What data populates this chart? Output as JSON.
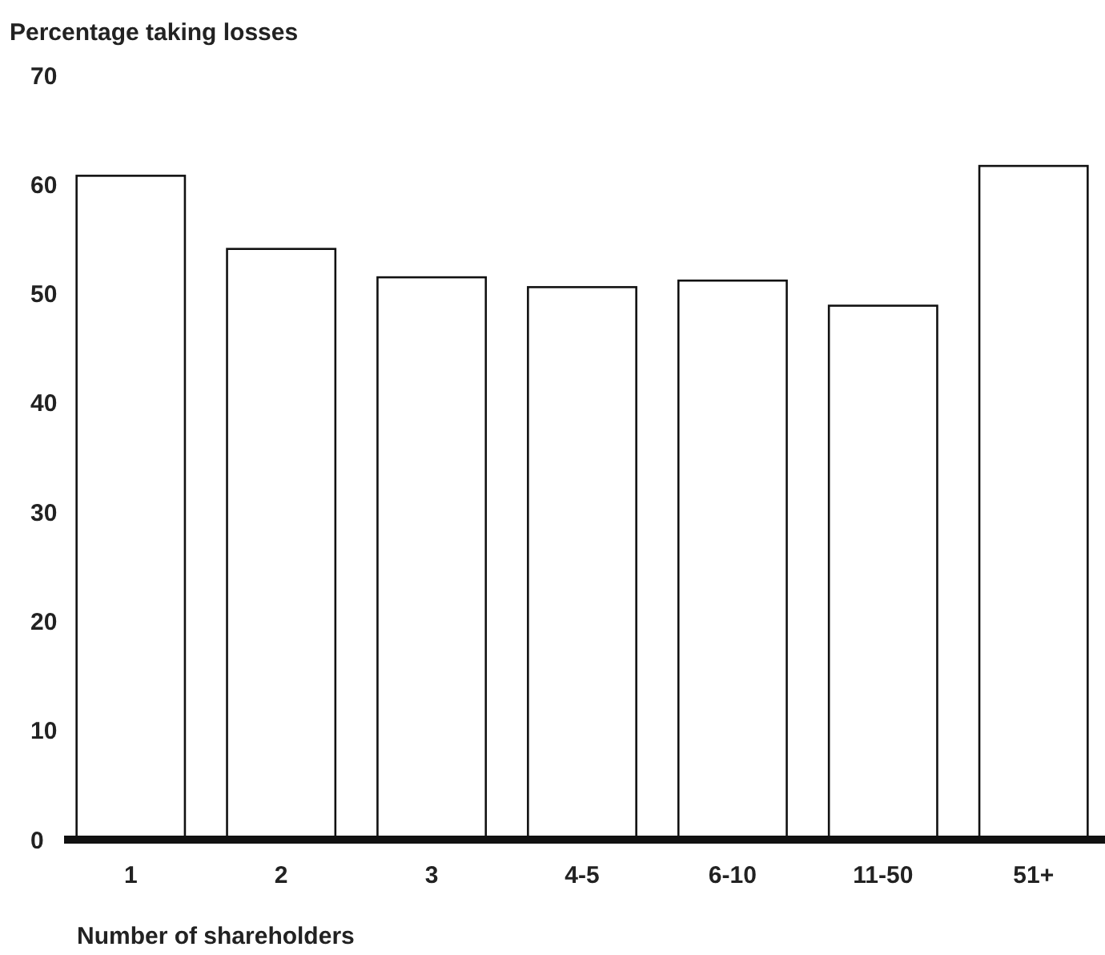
{
  "chart_data": {
    "type": "bar",
    "title": "Percentage taking losses",
    "xlabel": "Number of shareholders",
    "categories": [
      "1",
      "2",
      "3",
      "4-5",
      "6-10",
      "11-50",
      "51+"
    ],
    "values": [
      60.8,
      54.1,
      51.5,
      50.6,
      51.2,
      48.9,
      61.7
    ],
    "color": "#ffffff",
    "ylim": [
      0,
      70
    ],
    "yticks": [
      0,
      10,
      20,
      30,
      40,
      50,
      60,
      70
    ],
    "grid": false
  }
}
